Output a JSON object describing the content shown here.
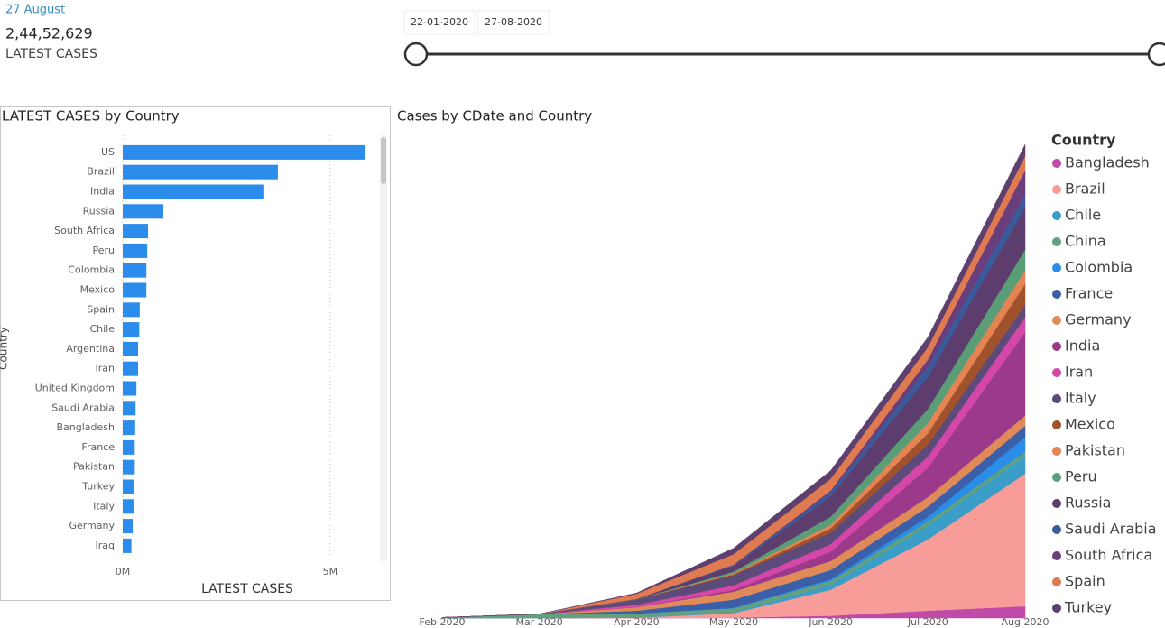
{
  "card": {
    "date": "27 August",
    "value": "2,44,52,629",
    "label": "LATEST CASES"
  },
  "slicer": {
    "start": "22-01-2020",
    "end": "27-08-2020"
  },
  "chart_data": [
    {
      "type": "hbar",
      "title": "LATEST CASES by Country",
      "x_label": "LATEST CASES",
      "y_label": "Country",
      "color": "#2b8ceb",
      "categories": [
        "US",
        "Brazil",
        "India",
        "Russia",
        "South Africa",
        "Peru",
        "Colombia",
        "Mexico",
        "Spain",
        "Chile",
        "Argentina",
        "Iran",
        "United Kingdom",
        "Saudi Arabia",
        "Bangladesh",
        "France",
        "Pakistan",
        "Turkey",
        "Italy",
        "Germany",
        "Iraq"
      ],
      "values": [
        5850000,
        3740000,
        3390000,
        980000,
        610000,
        590000,
        570000,
        570000,
        410000,
        400000,
        370000,
        370000,
        330000,
        310000,
        300000,
        290000,
        290000,
        260000,
        260000,
        240000,
        210000
      ],
      "xlim": [
        0,
        6200000
      ],
      "xticks": [
        {
          "value": 0,
          "label": "0M"
        },
        {
          "value": 5000000,
          "label": "5M"
        }
      ],
      "grid": true
    },
    {
      "type": "stacked_area",
      "title": "Cases by CDate and Country",
      "legend_title": "Country",
      "x": [
        "Feb 2020",
        "Mar 2020",
        "Apr 2020",
        "May 2020",
        "Jun 2020",
        "Jul 2020",
        "Aug 2020"
      ],
      "series": [
        {
          "name": "Bangladesh",
          "color": "#c04aa8",
          "values": [
            0,
            0,
            0,
            8000,
            47000,
            150000,
            240000
          ]
        },
        {
          "name": "Brazil",
          "color": "#f79c98",
          "values": [
            0,
            2,
            6000,
            92000,
            530000,
            1450000,
            2700000
          ]
        },
        {
          "name": "Chile",
          "color": "#3a9ec9",
          "values": [
            0,
            0,
            3000,
            17000,
            100000,
            280000,
            360000
          ]
        },
        {
          "name": "China",
          "color": "#63a17e",
          "values": [
            12000,
            80000,
            82000,
            83000,
            83000,
            84000,
            84500
          ]
        },
        {
          "name": "Colombia",
          "color": "#2a8ee8",
          "values": [
            0,
            0,
            1000,
            7000,
            30000,
            100000,
            300000
          ]
        },
        {
          "name": "France",
          "color": "#3b5fa8",
          "values": [
            6,
            130,
            57000,
            168000,
            189000,
            203000,
            225000
          ]
        },
        {
          "name": "Germany",
          "color": "#e08a5a",
          "values": [
            8,
            130,
            72000,
            163000,
            183000,
            195000,
            210000
          ]
        },
        {
          "name": "India",
          "color": "#9b3a8a",
          "values": [
            1,
            3,
            2000,
            35000,
            190000,
            600000,
            1700000
          ]
        },
        {
          "name": "Iran",
          "color": "#d447a8",
          "values": [
            0,
            600,
            47000,
            95000,
            155000,
            230000,
            305000
          ]
        },
        {
          "name": "Italy",
          "color": "#5b4a7a",
          "values": [
            2,
            1700,
            110000,
            205000,
            233000,
            240000,
            248000
          ]
        },
        {
          "name": "Mexico",
          "color": "#a0522d",
          "values": [
            0,
            5,
            1200,
            20000,
            90000,
            230000,
            425000
          ]
        },
        {
          "name": "Pakistan",
          "color": "#e48452",
          "values": [
            0,
            4,
            2000,
            17000,
            70000,
            210000,
            280000
          ]
        },
        {
          "name": "Peru",
          "color": "#5a9e78",
          "values": [
            0,
            0,
            1400,
            36000,
            165000,
            285000,
            420000
          ]
        },
        {
          "name": "Russia",
          "color": "#5c3d6e",
          "values": [
            2,
            2,
            2800,
            114000,
            415000,
            655000,
            850000
          ]
        },
        {
          "name": "Saudi Arabia",
          "color": "#3a5a9a",
          "values": [
            0,
            0,
            1600,
            22000,
            85000,
            195000,
            275000
          ]
        },
        {
          "name": "South Africa",
          "color": "#6a3d7c",
          "values": [
            0,
            0,
            1400,
            5600,
            33000,
            160000,
            490000
          ]
        },
        {
          "name": "Spain",
          "color": "#e07a50",
          "values": [
            1,
            80,
            104000,
            213000,
            240000,
            250000,
            290000
          ]
        },
        {
          "name": "Turkey",
          "color": "#5e406f",
          "values": [
            0,
            0,
            15000,
            122000,
            165000,
            200000,
            235000
          ]
        }
      ]
    }
  ]
}
